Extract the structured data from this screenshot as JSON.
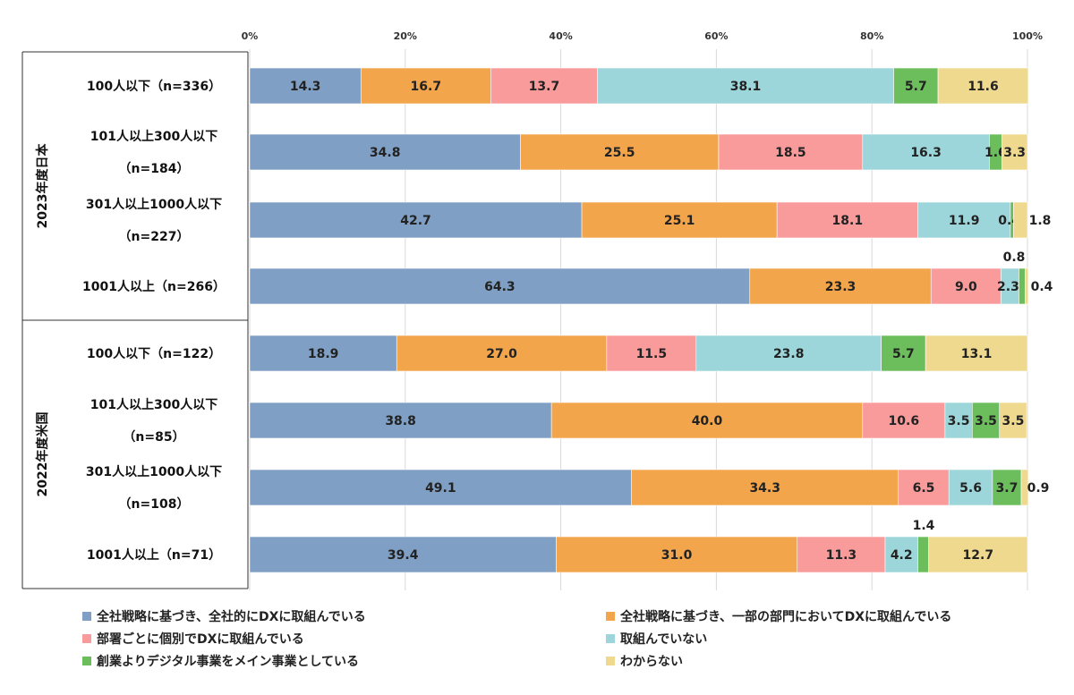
{
  "chart_data": {
    "type": "bar",
    "orientation": "horizontal",
    "stacked": "percent",
    "x_ticks": [
      "0%",
      "20%",
      "40%",
      "60%",
      "80%",
      "100%"
    ],
    "xlim": [
      0,
      100
    ],
    "grid": true,
    "legend_position": "bottom",
    "groups": [
      {
        "label": "2023年度日本",
        "rows": [
          {
            "label_lines": [
              "100人以下（n=336）"
            ],
            "values": [
              14.3,
              16.7,
              13.7,
              38.1,
              5.7,
              11.6
            ]
          },
          {
            "label_lines": [
              "101人以上300人以下",
              "（n=184）"
            ],
            "values": [
              34.8,
              25.5,
              18.5,
              16.3,
              1.6,
              3.3
            ]
          },
          {
            "label_lines": [
              "301人以上1000人以下",
              "（n=227）"
            ],
            "values": [
              42.7,
              25.1,
              18.1,
              11.9,
              0.4,
              1.8
            ]
          },
          {
            "label_lines": [
              "1001人以上（n=266）"
            ],
            "values": [
              64.3,
              23.3,
              9.0,
              2.3,
              0.8,
              0.4
            ]
          }
        ]
      },
      {
        "label": "2022年度米国",
        "rows": [
          {
            "label_lines": [
              "100人以下（n=122）"
            ],
            "values": [
              18.9,
              27.0,
              11.5,
              23.8,
              5.7,
              13.1
            ]
          },
          {
            "label_lines": [
              "101人以上300人以下",
              "（n=85）"
            ],
            "values": [
              38.8,
              40.0,
              10.6,
              3.5,
              3.5,
              3.5
            ]
          },
          {
            "label_lines": [
              "301人以上1000人以下",
              "（n=108）"
            ],
            "values": [
              49.1,
              34.3,
              6.5,
              5.6,
              3.7,
              0.9
            ]
          },
          {
            "label_lines": [
              "1001人以上（n=71）"
            ],
            "values": [
              39.4,
              31.0,
              11.3,
              4.2,
              1.4,
              12.7
            ]
          }
        ]
      }
    ],
    "series": [
      {
        "name": "全社戦略に基づき、全社的にDXに取組んでいる",
        "color": "#7f9fc4"
      },
      {
        "name": "全社戦略に基づき、一部の部門においてDXに取組んでいる",
        "color": "#f2a54a"
      },
      {
        "name": "部署ごとに個別でDXに取組んでいる",
        "color": "#f99b9b"
      },
      {
        "name": "取組んでいない",
        "color": "#9dd6da"
      },
      {
        "name": "創業よりデジタル事業をメイン事業としている",
        "color": "#6cbe5c"
      },
      {
        "name": "わからない",
        "color": "#efd98f"
      }
    ]
  }
}
